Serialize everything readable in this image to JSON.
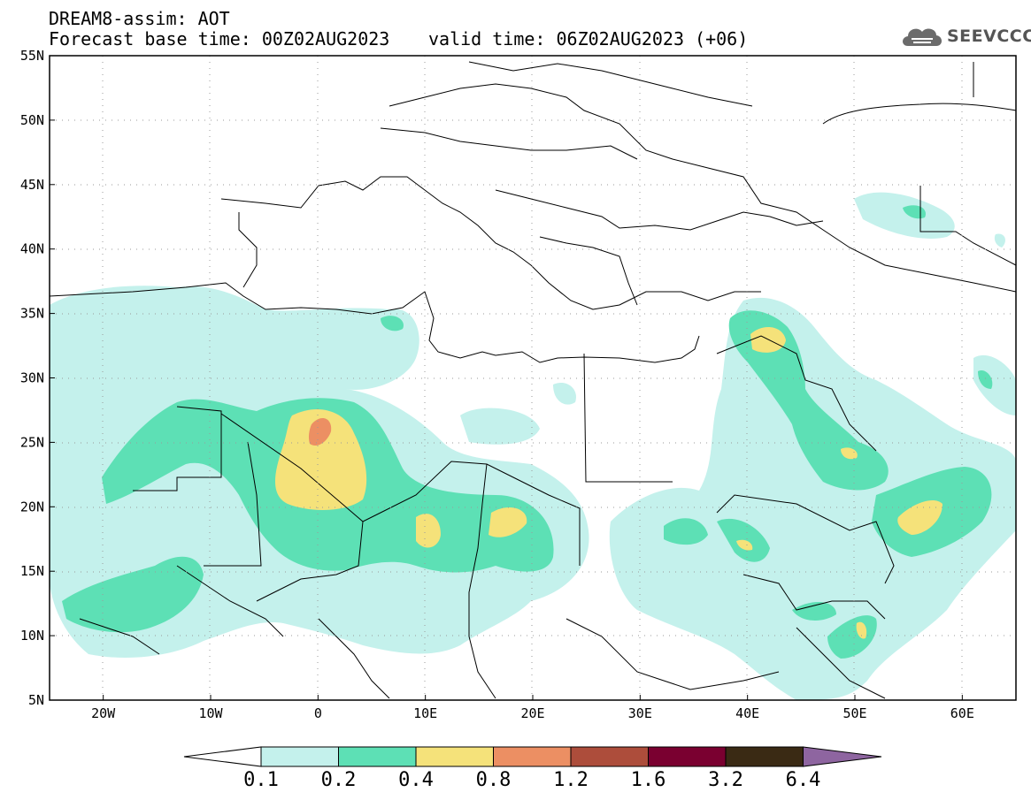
{
  "header": {
    "title": "DREAM8-assim: AOT",
    "base_time": "Forecast base time: 00Z02AUG2023",
    "valid_time": "valid time: 06Z02AUG2023 (+06)"
  },
  "logo": {
    "text": "SEEVCCC",
    "icon": "cloud-logo-icon"
  },
  "map": {
    "lon_range": [
      -25,
      65
    ],
    "lat_range": [
      5,
      55
    ],
    "lat_labels": [
      "55N",
      "50N",
      "45N",
      "40N",
      "35N",
      "30N",
      "25N",
      "20N",
      "15N",
      "10N",
      "5N"
    ],
    "lon_labels": [
      "20W",
      "10W",
      "0",
      "10E",
      "20E",
      "30E",
      "40E",
      "50E",
      "60E"
    ]
  },
  "colorbar": {
    "labels": [
      "0.1",
      "0.2",
      "0.4",
      "0.8",
      "1.2",
      "1.6",
      "3.2",
      "6.4"
    ],
    "colors": [
      "#ffffff",
      "#c4f1ec",
      "#5de0b5",
      "#f5e27a",
      "#ec8f63",
      "#ad4d3b",
      "#7a0030",
      "#3a2a14",
      "#8e65a0"
    ]
  }
}
